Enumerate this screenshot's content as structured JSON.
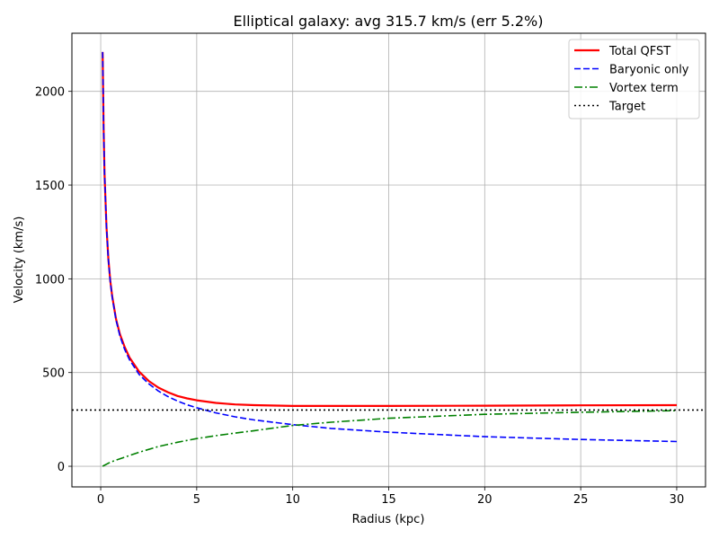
{
  "chart_data": {
    "type": "line",
    "title": "Elliptical galaxy: avg 315.7 km/s (err 5.2%)",
    "xlabel": "Radius (kpc)",
    "ylabel": "Velocity (km/s)",
    "xlim": [
      -1.5,
      31.5
    ],
    "ylim": [
      -110,
      2310
    ],
    "xticks": [
      0,
      5,
      10,
      15,
      20,
      25,
      30
    ],
    "yticks": [
      0,
      500,
      1000,
      1500,
      2000
    ],
    "grid": true,
    "legend_position": "top-right",
    "series": [
      {
        "name": "Total QFST",
        "color": "#ff0000",
        "style": "solid",
        "x": [
          0.1,
          0.15,
          0.2,
          0.3,
          0.4,
          0.5,
          0.6,
          0.8,
          1.0,
          1.25,
          1.5,
          2.0,
          2.5,
          3.0,
          3.5,
          4.0,
          4.5,
          5.0,
          6.0,
          7.0,
          8.0,
          10.0,
          12.0,
          15.0,
          20.0,
          25.0,
          30.0
        ],
        "y": [
          2210,
          1800,
          1560,
          1275,
          1105,
          990,
          905,
          785,
          705,
          635,
          580,
          505,
          455,
          420,
          395,
          375,
          362,
          352,
          338,
          330,
          326,
          322,
          322,
          322,
          323,
          325,
          326
        ]
      },
      {
        "name": "Baryonic only",
        "color": "#0000ff",
        "style": "dashed",
        "x": [
          0.1,
          0.15,
          0.2,
          0.3,
          0.4,
          0.5,
          0.6,
          0.8,
          1.0,
          1.25,
          1.5,
          2.0,
          2.5,
          3.0,
          3.5,
          4.0,
          4.5,
          5.0,
          6.0,
          7.0,
          8.0,
          10.0,
          12.0,
          15.0,
          20.0,
          25.0,
          30.0
        ],
        "y": [
          2210,
          1800,
          1560,
          1275,
          1100,
          985,
          900,
          780,
          695,
          622,
          568,
          490,
          440,
          402,
          372,
          348,
          328,
          312,
          285,
          264,
          247,
          222,
          202,
          182,
          158,
          143,
          132
        ]
      },
      {
        "name": "Vortex term",
        "color": "#008000",
        "style": "dashdot",
        "x": [
          0.1,
          0.5,
          1.0,
          2.0,
          3.0,
          4.0,
          5.0,
          6.0,
          7.0,
          8.0,
          10.0,
          12.0,
          15.0,
          20.0,
          25.0,
          30.0
        ],
        "y": [
          0,
          22,
          40,
          75,
          105,
          128,
          148,
          163,
          177,
          190,
          218,
          235,
          256,
          277,
          288,
          297
        ]
      },
      {
        "name": "Target",
        "color": "#000000",
        "style": "dotted",
        "x": [
          -1.5,
          31.5
        ],
        "y": [
          300,
          300
        ]
      }
    ]
  }
}
